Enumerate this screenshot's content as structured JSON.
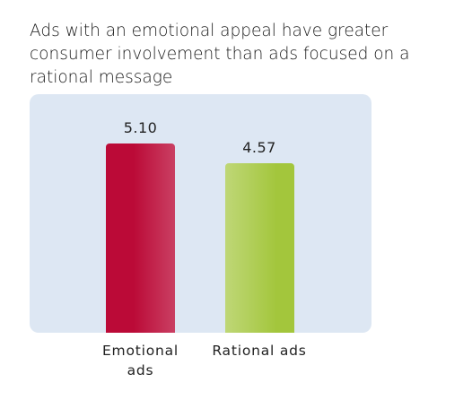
{
  "chart_data": {
    "type": "bar",
    "title": "Ads with an emotional appeal have greater consumer involvement than ads focused on a rational message",
    "categories": [
      "Emotional ads",
      "Rational ads"
    ],
    "values": [
      5.1,
      4.57
    ],
    "value_labels": [
      "5.10",
      "4.57"
    ],
    "colors": [
      "#bb0a37",
      "#a3c63c"
    ]
  }
}
